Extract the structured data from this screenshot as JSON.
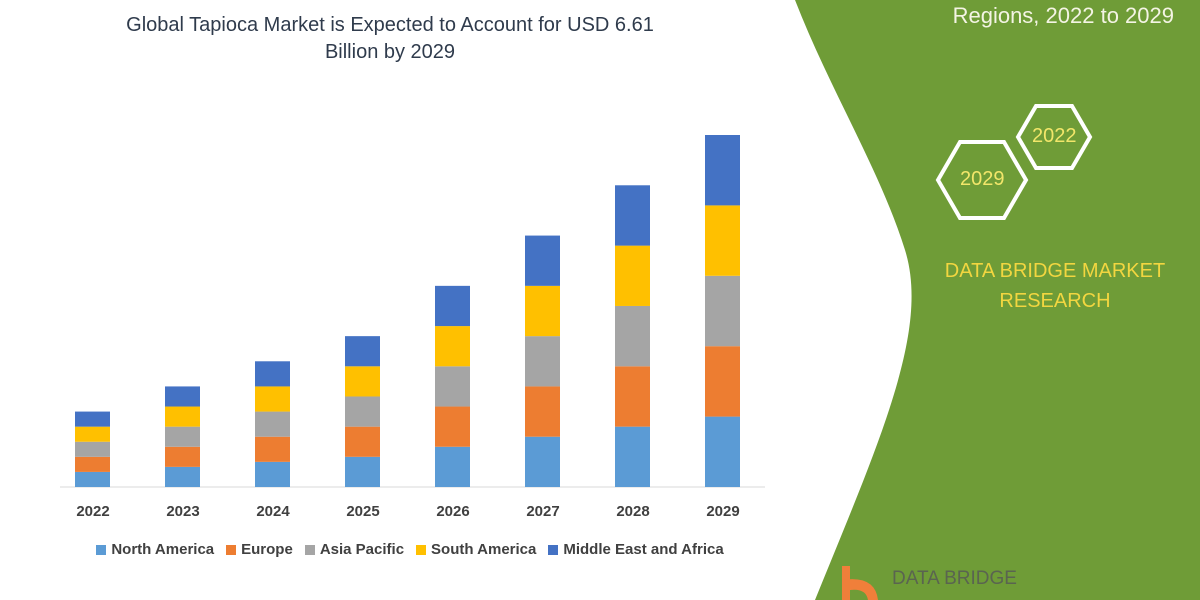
{
  "header": {
    "title_line1": "Global Tapioca Market is Expected to Account for USD 6.61",
    "title_line2": "Billion by 2029"
  },
  "side_panel": {
    "title": "Regions, 2022 to 2029",
    "hex_labels": [
      "2022",
      "2029"
    ],
    "brand_line1": "DATA BRIDGE MARKET",
    "brand_line2": "RESEARCH",
    "logo_text": "DATA BRIDGE",
    "panel_color": "#6f9c37"
  },
  "chart_data": {
    "type": "bar",
    "stacked": true,
    "title": "Global Tapioca Market is Expected to Account for USD 6.61 Billion by 2029",
    "categories": [
      "2022",
      "2023",
      "2024",
      "2025",
      "2026",
      "2027",
      "2028",
      "2029"
    ],
    "series": [
      {
        "name": "North America",
        "color": "#5b9bd5",
        "values": [
          15,
          20,
          25,
          30,
          40,
          50,
          60,
          70
        ]
      },
      {
        "name": "Europe",
        "color": "#ed7d31",
        "values": [
          15,
          20,
          25,
          30,
          40,
          50,
          60,
          70
        ]
      },
      {
        "name": "Asia Pacific",
        "color": "#a5a5a5",
        "values": [
          15,
          20,
          25,
          30,
          40,
          50,
          60,
          70
        ]
      },
      {
        "name": "South America",
        "color": "#ffc000",
        "values": [
          15,
          20,
          25,
          30,
          40,
          50,
          60,
          70
        ]
      },
      {
        "name": "Middle East and Africa",
        "color": "#4472c4",
        "values": [
          15,
          20,
          25,
          30,
          40,
          50,
          60,
          70
        ]
      }
    ],
    "ylim": [
      0,
      360
    ],
    "y_axis_shown": false,
    "grid": false,
    "legend": "bottom"
  }
}
